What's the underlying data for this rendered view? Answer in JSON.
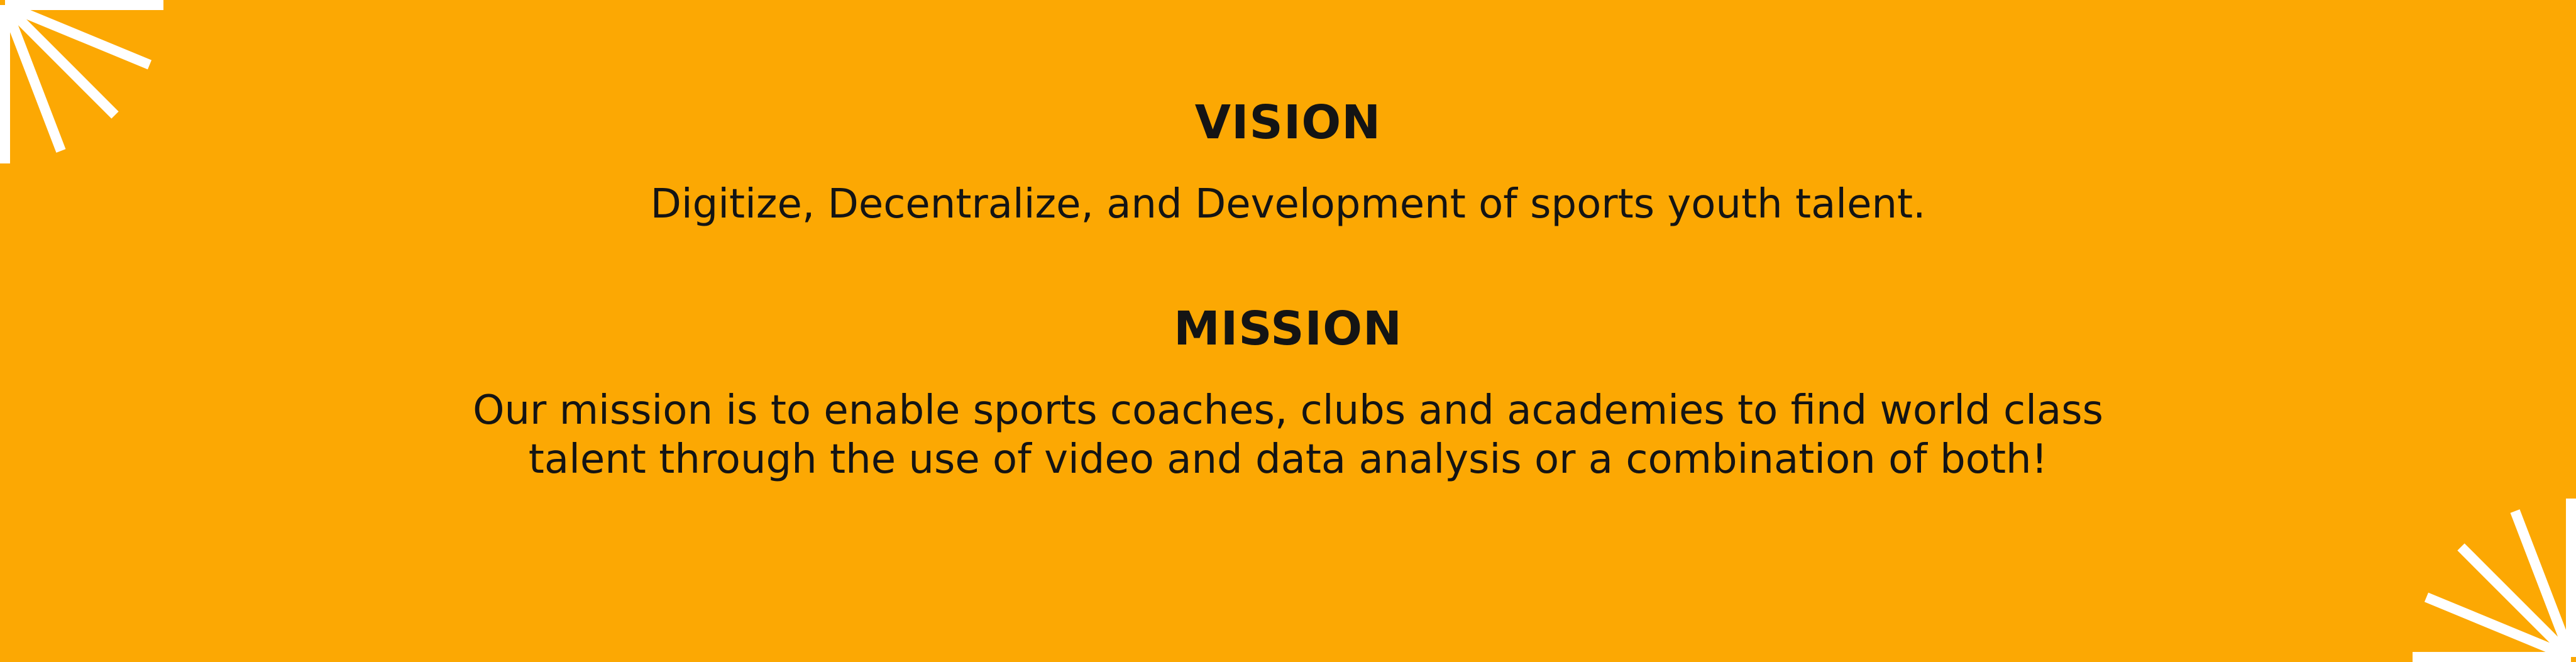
{
  "colors": {
    "background": "#FCA803",
    "text": "#141414",
    "accent_rays": "#FFFFFF"
  },
  "vision": {
    "heading": "VISION",
    "text": "Digitize, Decentralize, and Development of sports youth talent."
  },
  "mission": {
    "heading": "MISSION",
    "lines": [
      "Our mission is to enable sports coaches, clubs and academies to find world class",
      "talent through the use of video and data analysis or a combination of both!"
    ]
  },
  "decorations": {
    "top_left_icon": "sunburst-icon",
    "bottom_right_icon": "sunburst-icon"
  }
}
